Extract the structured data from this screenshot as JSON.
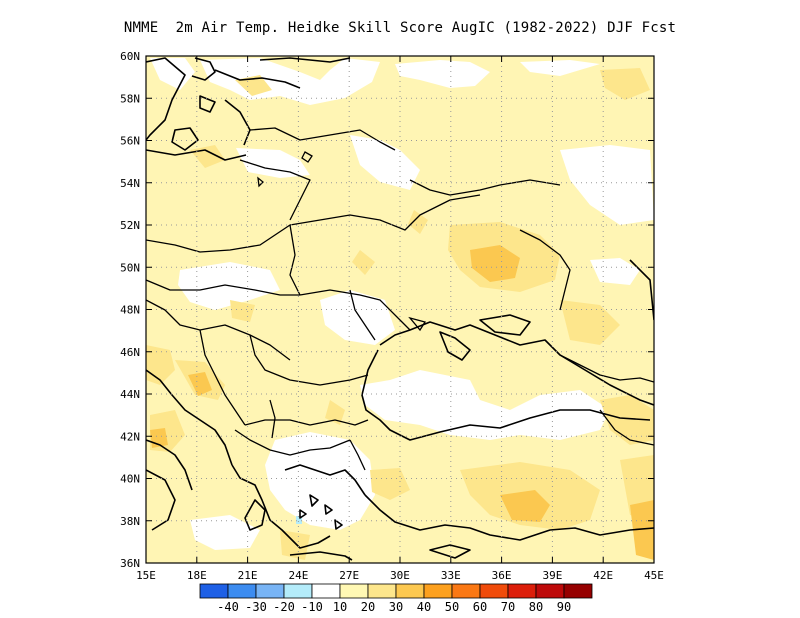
{
  "title": "NMME  2m Air Temp. Heidke Skill Score AugIC (1982-2022) DJF Fcst",
  "lon_labels": [
    "15E",
    "18E",
    "21E",
    "24E",
    "27E",
    "30E",
    "33E",
    "36E",
    "39E",
    "42E",
    "45E"
  ],
  "lat_labels": [
    "60N",
    "58N",
    "56N",
    "54N",
    "52N",
    "50N",
    "48N",
    "46N",
    "44N",
    "42N",
    "40N",
    "38N",
    "36N"
  ],
  "colorbar": {
    "colors": [
      "#1e60e6",
      "#3c8cf0",
      "#78b4f5",
      "#b4ecfa",
      "#ffffff",
      "#fff8b4",
      "#fde68c",
      "#fcc850",
      "#fca01e",
      "#fa7814",
      "#f04b0a",
      "#dc1e0a",
      "#be0a0a",
      "#960000"
    ],
    "labels": [
      "-40",
      "-30",
      "-20",
      "-10",
      "10",
      "20",
      "30",
      "40",
      "50",
      "60",
      "70",
      "80",
      "90"
    ]
  },
  "colors": {
    "light": "#fff5b4",
    "medium": "#fde68c",
    "strong": "#fbc850",
    "blue": "#b4ecfa"
  }
}
